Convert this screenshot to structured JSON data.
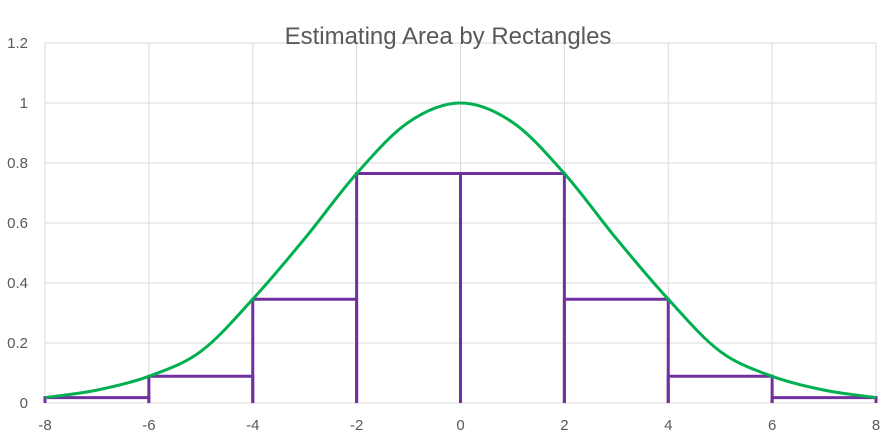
{
  "chart_data": {
    "type": "line",
    "title": "Estimating Area by Rectangles",
    "xlabel": "",
    "ylabel": "",
    "xlim": [
      -8,
      8
    ],
    "ylim": [
      0,
      1.2
    ],
    "x_ticks": [
      -8,
      -6,
      -4,
      -2,
      0,
      2,
      4,
      6,
      8
    ],
    "y_ticks": [
      0,
      0.2,
      0.4,
      0.6,
      0.8,
      1,
      1.2
    ],
    "x_tick_labels": [
      "-8",
      "-6",
      "-4",
      "-2",
      "0",
      "2",
      "4",
      "6",
      "8"
    ],
    "y_tick_labels": [
      "0",
      "0.2",
      "0.4",
      "0.6",
      "0.8",
      "1",
      "1.2"
    ],
    "grid": true,
    "legend": "none",
    "series": [
      {
        "kind": "curve",
        "color": "#00b050",
        "x": [
          -8,
          -7,
          -6,
          -5,
          -4,
          -3,
          -2,
          -1,
          0,
          1,
          2,
          3,
          4,
          5,
          6,
          7,
          8
        ],
        "y": [
          0.018,
          0.043,
          0.089,
          0.172,
          0.346,
          0.548,
          0.765,
          0.936,
          1.0,
          0.936,
          0.765,
          0.548,
          0.346,
          0.172,
          0.089,
          0.043,
          0.018
        ]
      },
      {
        "kind": "rectangles",
        "color": "#7030a0",
        "rects": [
          {
            "x0": -8,
            "x1": -6,
            "height": 0.018
          },
          {
            "x0": -6,
            "x1": -4,
            "height": 0.089
          },
          {
            "x0": -4,
            "x1": -2,
            "height": 0.346
          },
          {
            "x0": -2,
            "x1": 0,
            "height": 0.765
          },
          {
            "x0": 0,
            "x1": 2,
            "height": 0.765
          },
          {
            "x0": 2,
            "x1": 4,
            "height": 0.346
          },
          {
            "x0": 4,
            "x1": 6,
            "height": 0.089
          },
          {
            "x0": 6,
            "x1": 8,
            "height": 0.018
          }
        ]
      }
    ]
  }
}
